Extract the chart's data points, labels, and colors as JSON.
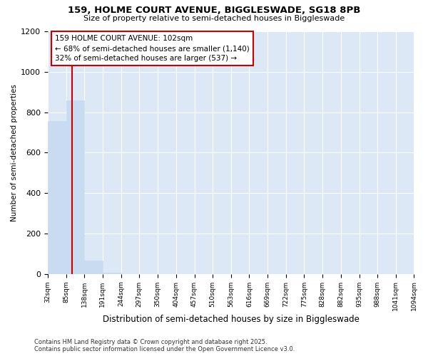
{
  "title1": "159, HOLME COURT AVENUE, BIGGLESWADE, SG18 8PB",
  "title2": "Size of property relative to semi-detached houses in Biggleswade",
  "xlabel": "Distribution of semi-detached houses by size in Biggleswade",
  "ylabel": "Number of semi-detached properties",
  "bins": [
    32,
    85,
    138,
    191,
    244,
    297,
    350,
    404,
    457,
    510,
    563,
    616,
    669,
    722,
    775,
    828,
    882,
    935,
    988,
    1041,
    1094
  ],
  "counts": [
    755,
    860,
    65,
    7,
    0,
    0,
    0,
    0,
    0,
    0,
    0,
    0,
    0,
    0,
    0,
    0,
    0,
    0,
    0,
    0
  ],
  "bar_color": "#c9dbf0",
  "bar_edge_color": "#c9dbf0",
  "vline_x": 102,
  "vline_color": "#cc0000",
  "annotation_line1": "159 HOLME COURT AVENUE: 102sqm",
  "annotation_line2": "← 68% of semi-detached houses are smaller (1,140)",
  "annotation_line3": "32% of semi-detached houses are larger (537) →",
  "annotation_box_color": "#ffffff",
  "annotation_border_color": "#cc0000",
  "ylim": [
    0,
    1200
  ],
  "yticks": [
    0,
    200,
    400,
    600,
    800,
    1000,
    1200
  ],
  "footer_text": "Contains HM Land Registry data © Crown copyright and database right 2025.\nContains public sector information licensed under the Open Government Licence v3.0.",
  "fig_bg_color": "#ffffff",
  "plot_bg_color": "#dce8f5",
  "grid_color": "#ffffff",
  "tick_labels": [
    "32sqm",
    "85sqm",
    "138sqm",
    "191sqm",
    "244sqm",
    "297sqm",
    "350sqm",
    "404sqm",
    "457sqm",
    "510sqm",
    "563sqm",
    "616sqm",
    "669sqm",
    "722sqm",
    "775sqm",
    "828sqm",
    "882sqm",
    "935sqm",
    "988sqm",
    "1041sqm",
    "1094sqm"
  ]
}
